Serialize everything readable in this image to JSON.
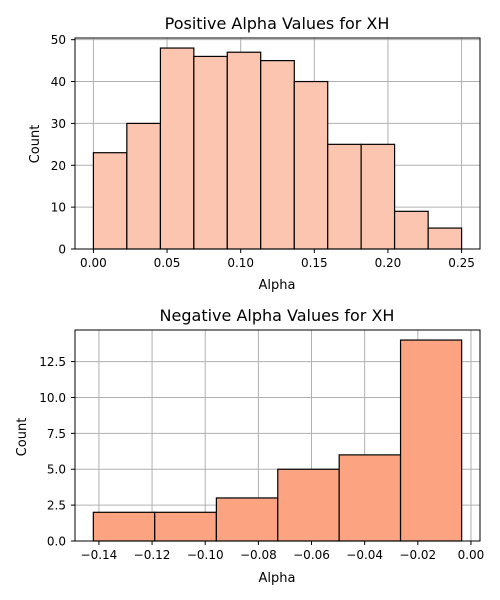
{
  "chart_data": [
    {
      "type": "bar",
      "title": "Positive Alpha Values for XH",
      "xlabel": "Alpha",
      "ylabel": "Count",
      "bin_edges": [
        0.0,
        0.0227,
        0.0455,
        0.0682,
        0.0909,
        0.1136,
        0.1364,
        0.1591,
        0.1818,
        0.2045,
        0.2273,
        0.25
      ],
      "values": [
        23,
        30,
        48,
        46,
        47,
        45,
        40,
        25,
        25,
        9,
        5
      ],
      "xlim": [
        -0.0125,
        0.2625
      ],
      "ylim": [
        0,
        50.4
      ],
      "xticks": [
        0.0,
        0.05,
        0.1,
        0.15,
        0.2,
        0.25
      ],
      "xtick_labels": [
        "0.00",
        "0.05",
        "0.10",
        "0.15",
        "0.20",
        "0.25"
      ],
      "yticks": [
        0,
        10,
        20,
        30,
        40,
        50
      ],
      "ytick_labels": [
        "0",
        "10",
        "20",
        "30",
        "40",
        "50"
      ],
      "grid": true,
      "bar_color": "#fcc5b0",
      "edge_color": "#000000"
    },
    {
      "type": "bar",
      "title": "Negative Alpha Values for XH",
      "xlabel": "Alpha",
      "ylabel": "Count",
      "bin_edges": [
        -0.1421,
        -0.119,
        -0.0958,
        -0.0727,
        -0.0496,
        -0.0265,
        -0.0035
      ],
      "values": [
        2,
        2,
        3,
        5,
        6,
        14
      ],
      "xlim": [
        -0.149,
        0.0034
      ],
      "ylim": [
        0,
        14.7
      ],
      "xticks": [
        -0.14,
        -0.12,
        -0.1,
        -0.08,
        -0.06,
        -0.04,
        -0.02,
        0.0
      ],
      "xtick_labels": [
        "−0.14",
        "−0.12",
        "−0.10",
        "−0.08",
        "−0.06",
        "−0.04",
        "−0.02",
        "0.00"
      ],
      "yticks": [
        0,
        2.5,
        5,
        7.5,
        10,
        12.5
      ],
      "ytick_labels": [
        "0.0",
        "2.5",
        "5.0",
        "7.5",
        "10.0",
        "12.5"
      ],
      "grid": true,
      "bar_color": "#fca481",
      "edge_color": "#000000"
    }
  ]
}
